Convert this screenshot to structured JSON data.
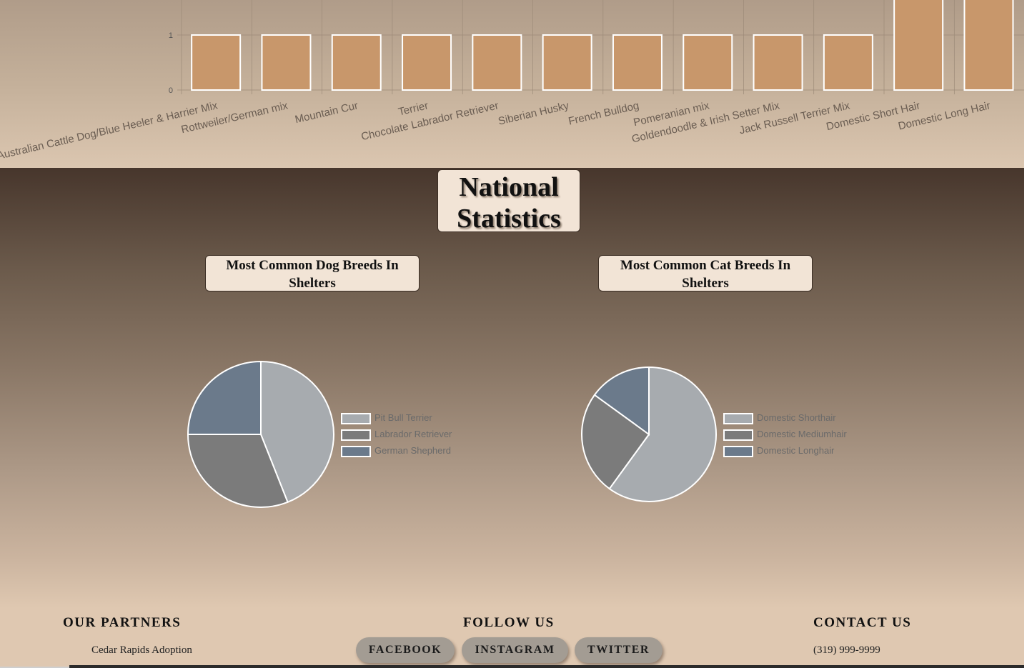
{
  "local_chart": {
    "chart_data": {
      "type": "bar",
      "categories": [
        "Australian Cattle Dog/Blue Heeler & Harrier Mix",
        "Rottweiler/German mix",
        "Mountain Cur",
        "Terrier",
        "Chocolate Labrador Retriever",
        "Siberian Husky",
        "French Bulldog",
        "Pomeranian mix",
        "Goldendoodle & Irish Setter Mix",
        "Jack Russell Terrier Mix",
        "Domestic Short Hair",
        "Domestic Long Hair"
      ],
      "values": [
        1,
        1,
        1,
        1,
        1,
        1,
        1,
        1,
        1,
        1,
        2,
        2
      ],
      "y_ticks": [
        "0",
        "1"
      ],
      "grid": true,
      "color": "#c8976b"
    }
  },
  "stats": {
    "title": "National Statistics",
    "dog_chart": {
      "title": "Most Common Dog Breeds In Shelters",
      "chart_data": {
        "type": "pie",
        "labels": [
          "Pit Bull Terrier",
          "Labrador Retriever",
          "German Shepherd"
        ],
        "values": [
          44,
          31,
          25
        ],
        "colors": [
          "#a7abaf",
          "#7b7b7b",
          "#6b7a8b"
        ],
        "legend": "right"
      }
    },
    "cat_chart": {
      "title": "Most Common Cat Breeds In Shelters",
      "chart_data": {
        "type": "pie",
        "labels": [
          "Domestic Shorthair",
          "Domestic Mediumhair",
          "Domestic Longhair"
        ],
        "values": [
          60,
          25,
          15
        ],
        "colors": [
          "#a7abaf",
          "#7b7b7b",
          "#6b7a8b"
        ],
        "legend": "right"
      }
    }
  },
  "footer": {
    "partners_heading": "OUR PARTNERS",
    "partners": [
      "Cedar Rapids Adoption"
    ],
    "follow_heading": "FOLLOW US",
    "social": [
      "FACEBOOK",
      "INSTAGRAM",
      "TWITTER"
    ],
    "contact_heading": "CONTACT US",
    "phone": "(319) 999-9999"
  }
}
